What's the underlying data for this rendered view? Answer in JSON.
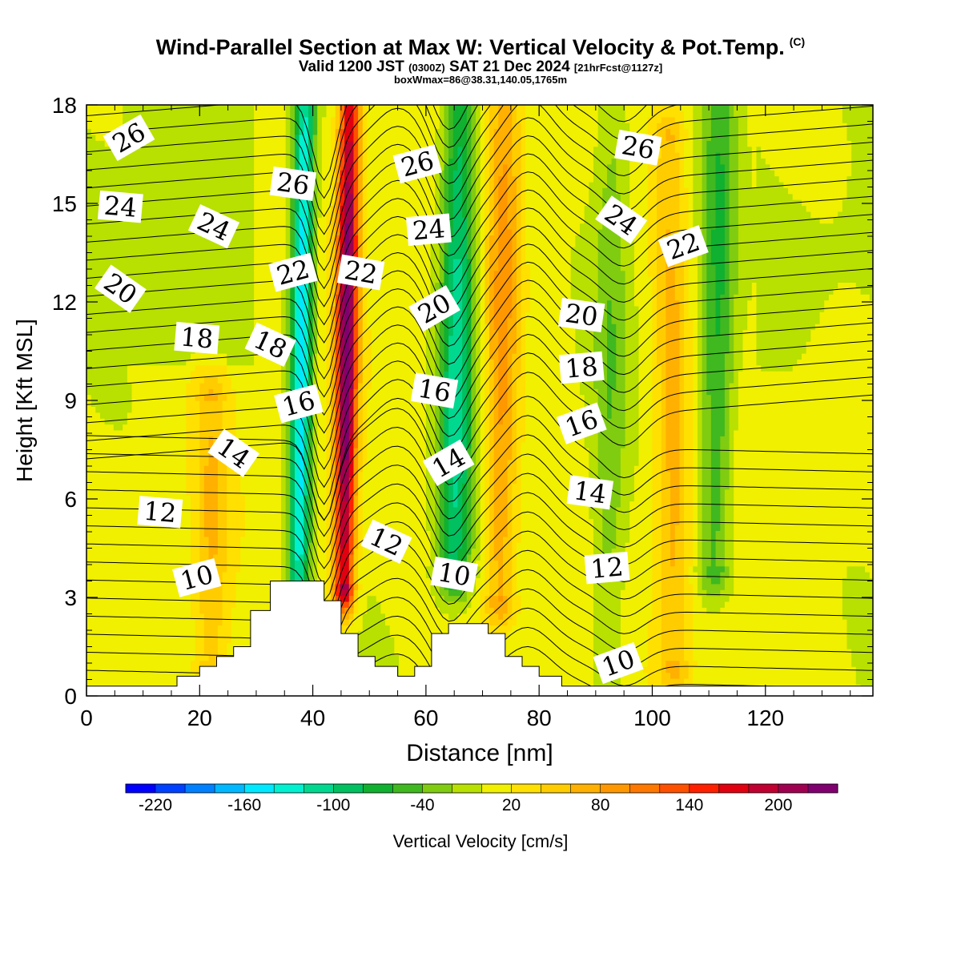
{
  "header": {
    "title": "Wind-Parallel Section at Max W: Vertical Velocity & Pot.Temp.",
    "copyright": "(C)",
    "valid_prefix": "Valid 1200 JST",
    "valid_utc": "(0300Z)",
    "valid_date": "SAT 21 Dec 2024",
    "forecast_info": "[21hrFcst@1127z]",
    "box_info": "boxWmax=86@38.31,140.05,1765m"
  },
  "chart_data": {
    "type": "heatmap",
    "title": "Wind-Parallel Section at Max W: Vertical Velocity & Pot.Temp.",
    "xlabel": "Distance [nm]",
    "ylabel": "Height [Kft MSL]",
    "xlim": [
      0,
      139
    ],
    "ylim": [
      0,
      18
    ],
    "x_ticks": [
      "0",
      "20",
      "40",
      "60",
      "80",
      "100",
      "120"
    ],
    "y_ticks": [
      "0",
      "3",
      "6",
      "9",
      "12",
      "15",
      "18"
    ],
    "colorbar": {
      "label": "Vertical Velocity [cm/s]",
      "tick_labels": [
        "-220",
        "-160",
        "-100",
        "-40",
        "20",
        "80",
        "140",
        "200"
      ],
      "levels": [
        -240,
        -220,
        -200,
        -180,
        -160,
        -140,
        -120,
        -100,
        -80,
        -60,
        -40,
        -20,
        0,
        20,
        40,
        60,
        80,
        100,
        120,
        140,
        160,
        180,
        200,
        220,
        240
      ],
      "colors": [
        "#0000ff",
        "#0040ff",
        "#0080ff",
        "#00b8ff",
        "#00e8ff",
        "#00f0d0",
        "#00d890",
        "#00c060",
        "#10b030",
        "#40b820",
        "#80cc10",
        "#b8e000",
        "#f0f000",
        "#ffe000",
        "#ffcc00",
        "#ffb000",
        "#ff9800",
        "#ff7800",
        "#ff5000",
        "#ff2000",
        "#e00010",
        "#c00030",
        "#a00050",
        "#800070"
      ]
    },
    "vertical_velocity_features": [
      {
        "x_center": 37.5,
        "x_center_top": 38.5,
        "y_range": [
          3.5,
          18
        ],
        "value": -170
      },
      {
        "x_center": 45.5,
        "x_center_top": 46.5,
        "y_range": [
          3.5,
          18
        ],
        "value": 230
      },
      {
        "x_center": 65,
        "x_center_top": 66,
        "y_range": [
          4,
          18
        ],
        "value": -120
      },
      {
        "x_center": 73,
        "x_center_top": 74,
        "y_range": [
          3,
          18
        ],
        "value": 80
      },
      {
        "x_center": 92,
        "x_center_top": 93,
        "y_range": [
          0,
          18
        ],
        "value": -40
      },
      {
        "x_center": 104,
        "x_center_top": 103,
        "y_range": [
          1,
          17
        ],
        "value": 60
      },
      {
        "x_center": 111,
        "x_center_top": 112,
        "y_range": [
          4,
          18
        ],
        "value": -70
      },
      {
        "x_center": 22,
        "x_center_top": 22,
        "y_range": [
          1,
          9
        ],
        "value": 50
      }
    ],
    "theta_contours": [
      {
        "label": "10",
        "labeled_at": [
          [
            19.5,
            3.6
          ],
          [
            65,
            3.7
          ],
          [
            94,
            1.0
          ]
        ]
      },
      {
        "label": "12",
        "labeled_at": [
          [
            13,
            5.6
          ],
          [
            53,
            4.7
          ],
          [
            92,
            3.9
          ]
        ]
      },
      {
        "label": "14",
        "labeled_at": [
          [
            26,
            7.4
          ],
          [
            64,
            7.1
          ],
          [
            89,
            6.2
          ]
        ]
      },
      {
        "label": "16",
        "labeled_at": [
          [
            37.5,
            8.9
          ],
          [
            61.5,
            9.3
          ],
          [
            87.5,
            8.3
          ]
        ]
      },
      {
        "label": "18",
        "labeled_at": [
          [
            19.5,
            10.9
          ],
          [
            32.5,
            10.7
          ],
          [
            87.5,
            10.0
          ]
        ]
      },
      {
        "label": "20",
        "labeled_at": [
          [
            6,
            12.4
          ],
          [
            61.5,
            11.8
          ],
          [
            87.5,
            11.6
          ]
        ]
      },
      {
        "label": "22",
        "labeled_at": [
          [
            36.5,
            12.9
          ],
          [
            48.5,
            12.9
          ],
          [
            105.5,
            13.7
          ]
        ]
      },
      {
        "label": "24",
        "labeled_at": [
          [
            6,
            14.9
          ],
          [
            22.5,
            14.3
          ],
          [
            60.5,
            14.2
          ],
          [
            94.5,
            14.5
          ]
        ]
      },
      {
        "label": "26",
        "labeled_at": [
          [
            7.5,
            17.0
          ],
          [
            36.5,
            15.6
          ],
          [
            58.5,
            16.2
          ],
          [
            97.5,
            16.7
          ]
        ]
      }
    ],
    "terrain": [
      [
        0,
        0.3
      ],
      [
        16,
        0.3
      ],
      [
        16,
        0.6
      ],
      [
        20,
        0.6
      ],
      [
        20,
        0.9
      ],
      [
        23,
        0.9
      ],
      [
        23,
        1.2
      ],
      [
        26,
        1.2
      ],
      [
        26,
        1.5
      ],
      [
        29,
        1.5
      ],
      [
        29,
        2.6
      ],
      [
        32.5,
        2.6
      ],
      [
        32.5,
        3.5
      ],
      [
        42,
        3.5
      ],
      [
        42,
        2.9
      ],
      [
        45,
        2.9
      ],
      [
        45,
        1.9
      ],
      [
        48,
        1.9
      ],
      [
        48,
        1.2
      ],
      [
        51,
        1.2
      ],
      [
        51,
        0.9
      ],
      [
        55,
        0.9
      ],
      [
        55,
        0.6
      ],
      [
        58,
        0.6
      ],
      [
        58,
        0.9
      ],
      [
        61,
        0.9
      ],
      [
        61,
        1.9
      ],
      [
        64,
        1.9
      ],
      [
        64,
        2.2
      ],
      [
        71,
        2.2
      ],
      [
        71,
        1.9
      ],
      [
        74,
        1.9
      ],
      [
        74,
        1.2
      ],
      [
        77,
        1.2
      ],
      [
        77,
        0.9
      ],
      [
        80,
        0.9
      ],
      [
        80,
        0.6
      ],
      [
        84,
        0.6
      ],
      [
        84,
        0.3
      ],
      [
        139,
        0.3
      ]
    ]
  }
}
